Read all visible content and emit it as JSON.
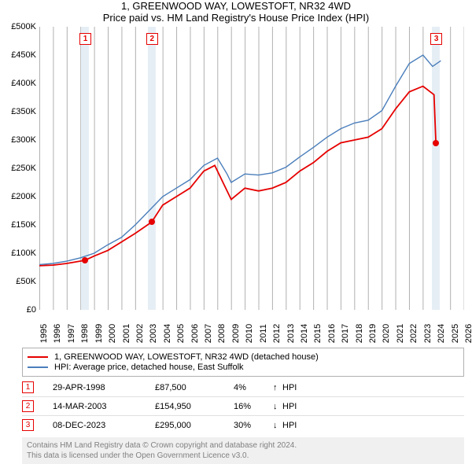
{
  "title": "1, GREENWOOD WAY, LOWESTOFT, NR32 4WD",
  "subtitle": "Price paid vs. HM Land Registry's House Price Index (HPI)",
  "chart": {
    "type": "line",
    "x_start": 1995,
    "x_end": 2026,
    "x_years": [
      1995,
      1996,
      1997,
      1998,
      1999,
      2000,
      2001,
      2002,
      2003,
      2004,
      2005,
      2006,
      2007,
      2008,
      2009,
      2010,
      2011,
      2012,
      2013,
      2014,
      2015,
      2016,
      2017,
      2018,
      2019,
      2020,
      2021,
      2022,
      2023,
      2024,
      2025,
      2026
    ],
    "ylim": [
      0,
      500000
    ],
    "ytick_step": 50000,
    "yticks": [
      "£0",
      "£50K",
      "£100K",
      "£150K",
      "£200K",
      "£250K",
      "£300K",
      "£350K",
      "£400K",
      "£450K",
      "£500K"
    ],
    "grid_color": "#b0b0b0",
    "background": "#ffffff",
    "band_color": "#e6eef5",
    "font_size_axis": 11,
    "series": [
      {
        "name": "red",
        "label": "1, GREENWOOD WAY, LOWESTOFT, NR32 4WD (detached house)",
        "color": "#e60000",
        "width": 1.8,
        "points": [
          [
            1995,
            78000
          ],
          [
            1996,
            79000
          ],
          [
            1997,
            82000
          ],
          [
            1998.33,
            87500
          ],
          [
            1999,
            95000
          ],
          [
            2000,
            105000
          ],
          [
            2001,
            120000
          ],
          [
            2002,
            135000
          ],
          [
            2003.2,
            154950
          ],
          [
            2004,
            185000
          ],
          [
            2005,
            200000
          ],
          [
            2006,
            215000
          ],
          [
            2007,
            245000
          ],
          [
            2007.8,
            255000
          ],
          [
            2008.5,
            220000
          ],
          [
            2009,
            195000
          ],
          [
            2010,
            215000
          ],
          [
            2011,
            210000
          ],
          [
            2012,
            215000
          ],
          [
            2013,
            225000
          ],
          [
            2014,
            245000
          ],
          [
            2015,
            260000
          ],
          [
            2016,
            280000
          ],
          [
            2017,
            295000
          ],
          [
            2018,
            300000
          ],
          [
            2019,
            305000
          ],
          [
            2020,
            320000
          ],
          [
            2021,
            355000
          ],
          [
            2022,
            385000
          ],
          [
            2023,
            395000
          ],
          [
            2023.8,
            380000
          ],
          [
            2023.94,
            295000
          ]
        ]
      },
      {
        "name": "blue",
        "label": "HPI: Average price, detached house, East Suffolk",
        "color": "#4a7ebb",
        "width": 1.4,
        "points": [
          [
            1995,
            80000
          ],
          [
            1996,
            82000
          ],
          [
            1997,
            86000
          ],
          [
            1998,
            92000
          ],
          [
            1999,
            100000
          ],
          [
            2000,
            115000
          ],
          [
            2001,
            128000
          ],
          [
            2002,
            150000
          ],
          [
            2003,
            175000
          ],
          [
            2004,
            200000
          ],
          [
            2005,
            215000
          ],
          [
            2006,
            230000
          ],
          [
            2007,
            255000
          ],
          [
            2008,
            268000
          ],
          [
            2008.7,
            240000
          ],
          [
            2009,
            225000
          ],
          [
            2010,
            240000
          ],
          [
            2011,
            238000
          ],
          [
            2012,
            242000
          ],
          [
            2013,
            252000
          ],
          [
            2014,
            270000
          ],
          [
            2015,
            287000
          ],
          [
            2016,
            305000
          ],
          [
            2017,
            320000
          ],
          [
            2018,
            330000
          ],
          [
            2019,
            335000
          ],
          [
            2020,
            352000
          ],
          [
            2021,
            395000
          ],
          [
            2022,
            435000
          ],
          [
            2023,
            450000
          ],
          [
            2023.7,
            430000
          ],
          [
            2024.3,
            440000
          ]
        ]
      }
    ],
    "event_markers": [
      {
        "num": "1",
        "x": 1998.33,
        "y": 87500,
        "color": "#e60000"
      },
      {
        "num": "2",
        "x": 2003.2,
        "y": 154950,
        "color": "#e60000"
      },
      {
        "num": "3",
        "x": 2023.94,
        "y": 295000,
        "color": "#e60000"
      }
    ]
  },
  "legend": {
    "items": [
      {
        "color": "#e60000",
        "label": "1, GREENWOOD WAY, LOWESTOFT, NR32 4WD (detached house)"
      },
      {
        "color": "#4a7ebb",
        "label": "HPI: Average price, detached house, East Suffolk"
      }
    ]
  },
  "events": [
    {
      "num": "1",
      "color": "#e60000",
      "date": "29-APR-1998",
      "price": "£87,500",
      "pct": "4%",
      "arrow": "↑",
      "suffix": "HPI"
    },
    {
      "num": "2",
      "color": "#e60000",
      "date": "14-MAR-2003",
      "price": "£154,950",
      "pct": "16%",
      "arrow": "↓",
      "suffix": "HPI"
    },
    {
      "num": "3",
      "color": "#e60000",
      "date": "08-DEC-2023",
      "price": "£295,000",
      "pct": "30%",
      "arrow": "↓",
      "suffix": "HPI"
    }
  ],
  "footer": {
    "line1": "Contains HM Land Registry data © Crown copyright and database right 2024.",
    "line2": "This data is licensed under the Open Government Licence v3.0."
  }
}
